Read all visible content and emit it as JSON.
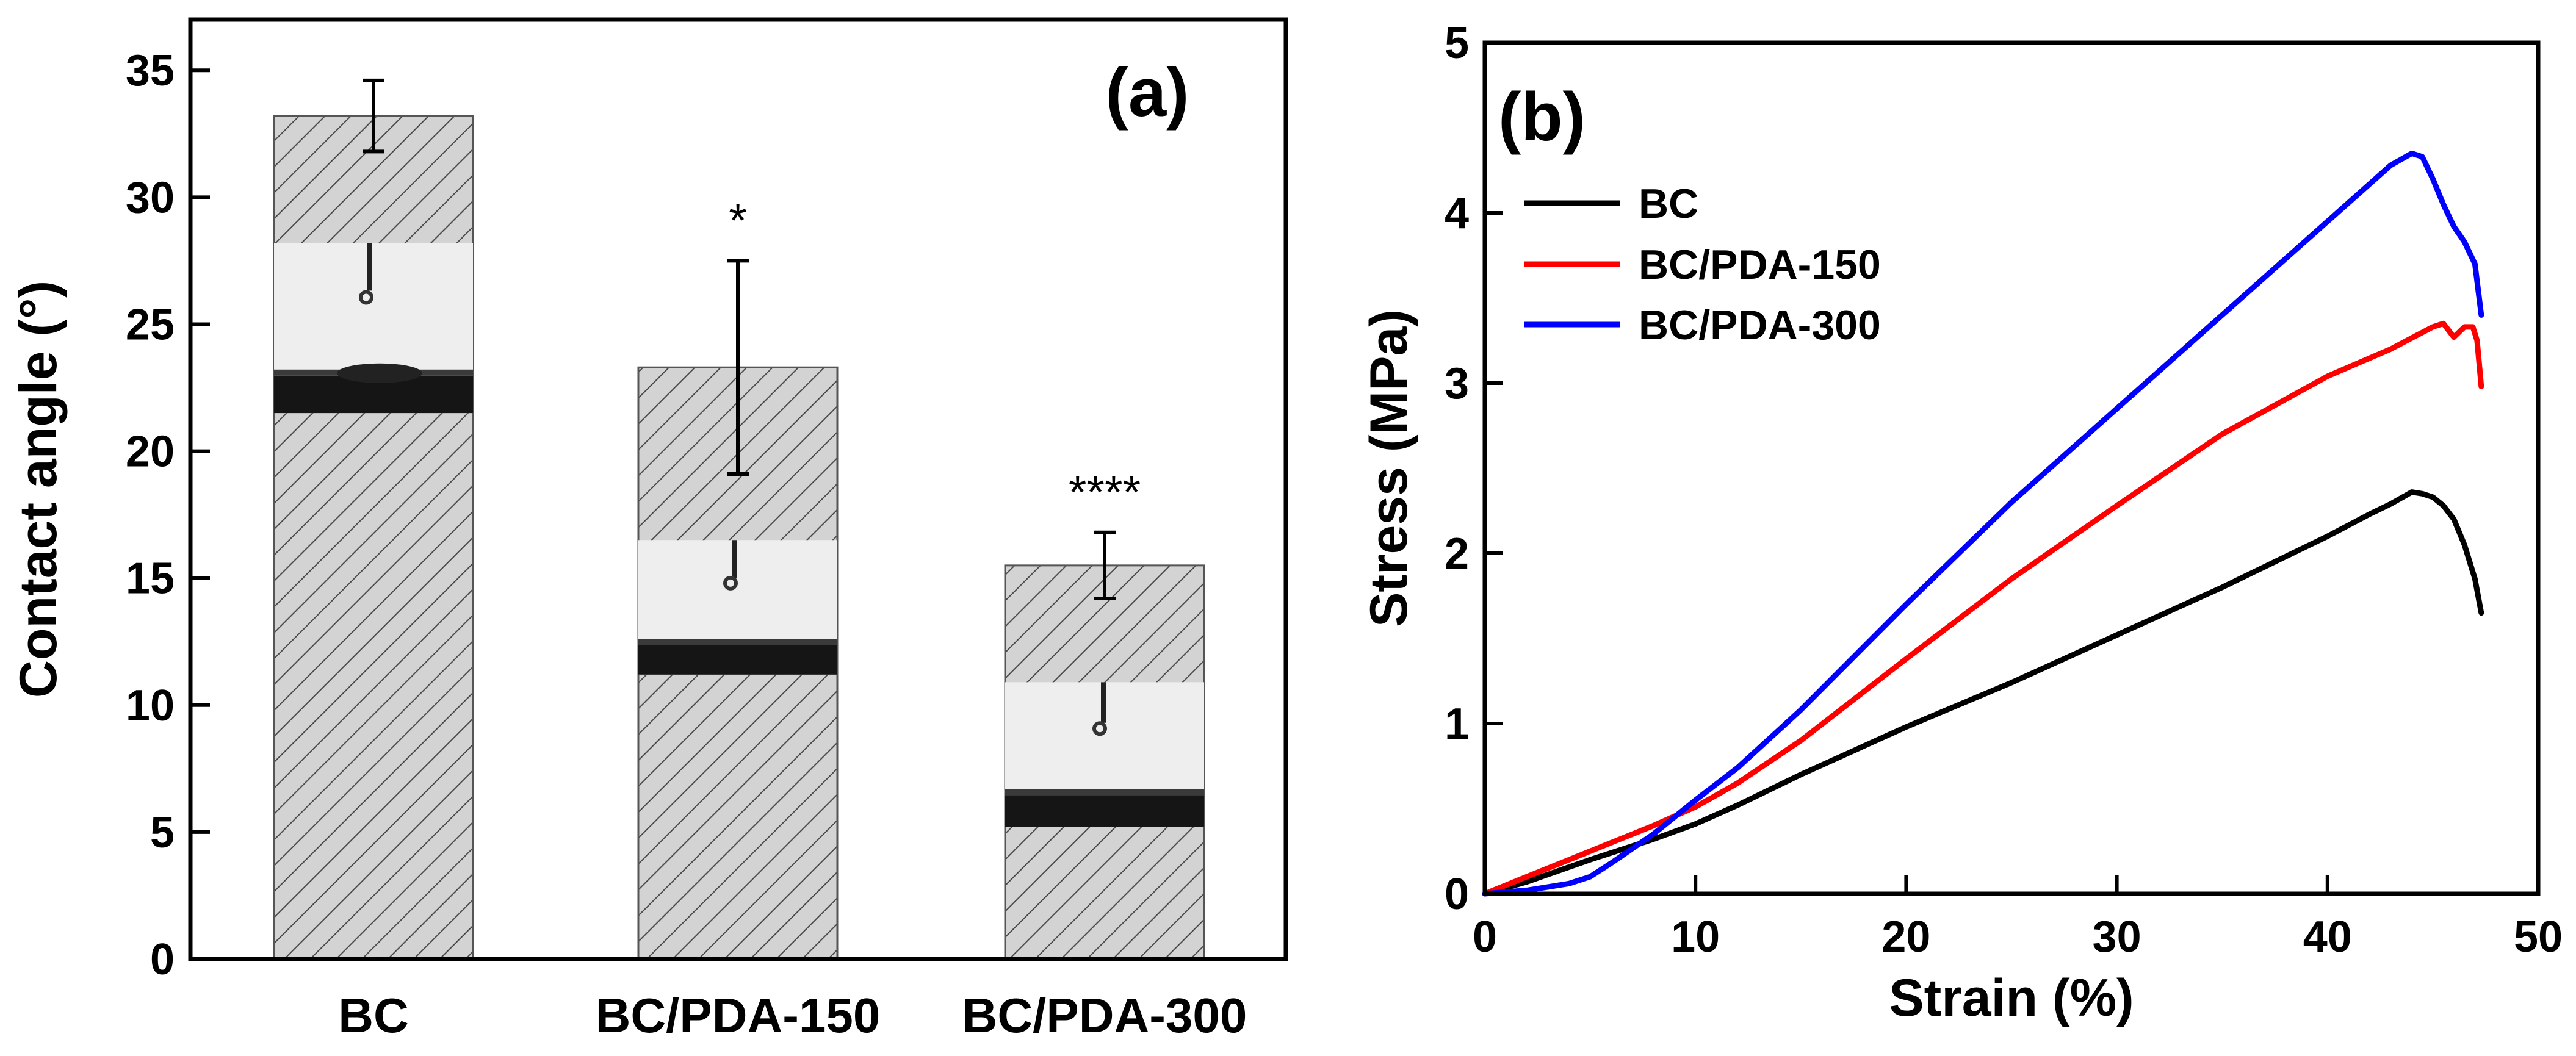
{
  "chart_data": [
    {
      "type": "bar",
      "panel_label": "(a)",
      "title": "",
      "xlabel": "",
      "ylabel": "Contact angle (°)",
      "ylim": [
        0,
        37
      ],
      "yticks": [
        0,
        5,
        10,
        15,
        20,
        25,
        30,
        35
      ],
      "categories": [
        "BC",
        "BC/PDA-150",
        "BC/PDA-300"
      ],
      "values": [
        33.2,
        23.3,
        15.5
      ],
      "errors": [
        1.4,
        4.2,
        1.3
      ],
      "significance": [
        "",
        "*",
        "****"
      ],
      "inset_images": [
        {
          "category": "BC",
          "depicts": "water droplet on BC film",
          "y_range": [
            21.5,
            28.2
          ]
        },
        {
          "category": "BC/PDA-150",
          "depicts": "water droplet on BC/PDA-150 film",
          "y_range": [
            11.2,
            16.5
          ]
        },
        {
          "category": "BC/PDA-300",
          "depicts": "water droplet on BC/PDA-300 film",
          "y_range": [
            5.2,
            10.9
          ]
        }
      ]
    },
    {
      "type": "line",
      "panel_label": "(b)",
      "title": "",
      "xlabel": "Strain (%)",
      "ylabel": "Stress (MPa)",
      "xlim": [
        0,
        50
      ],
      "ylim": [
        0,
        5
      ],
      "xticks": [
        0,
        10,
        20,
        30,
        40,
        50
      ],
      "yticks": [
        0,
        1,
        2,
        3,
        4,
        5
      ],
      "legend_position": "top-left",
      "series": [
        {
          "name": "BC",
          "color": "#000000",
          "x": [
            0,
            2,
            5,
            8,
            10,
            12,
            15,
            20,
            25,
            30,
            35,
            40,
            42,
            43,
            44,
            44.5,
            45,
            45.5,
            46,
            46.5,
            47,
            47.3
          ],
          "y": [
            0,
            0.07,
            0.2,
            0.32,
            0.41,
            0.52,
            0.7,
            0.98,
            1.24,
            1.52,
            1.8,
            2.1,
            2.23,
            2.29,
            2.36,
            2.35,
            2.33,
            2.28,
            2.2,
            2.05,
            1.85,
            1.65
          ]
        },
        {
          "name": "BC/PDA-150",
          "color": "#ff0000",
          "x": [
            0,
            2,
            5,
            8,
            10,
            12,
            15,
            20,
            25,
            30,
            35,
            40,
            43,
            45,
            45.5,
            46,
            46.5,
            46.9,
            47.1,
            47.3
          ],
          "y": [
            0,
            0.1,
            0.25,
            0.4,
            0.51,
            0.65,
            0.9,
            1.38,
            1.85,
            2.28,
            2.7,
            3.04,
            3.2,
            3.33,
            3.35,
            3.27,
            3.33,
            3.33,
            3.25,
            2.98
          ]
        },
        {
          "name": "BC/PDA-300",
          "color": "#0000ff",
          "x": [
            0,
            2,
            4,
            5,
            6,
            8,
            10,
            12,
            15,
            20,
            25,
            30,
            35,
            40,
            43,
            44,
            44.5,
            45,
            45.5,
            46,
            46.5,
            47,
            47.3
          ],
          "y": [
            0,
            0.02,
            0.06,
            0.1,
            0.18,
            0.35,
            0.55,
            0.74,
            1.08,
            1.7,
            2.3,
            2.85,
            3.4,
            3.95,
            4.28,
            4.35,
            4.33,
            4.2,
            4.05,
            3.92,
            3.83,
            3.7,
            3.4
          ]
        }
      ]
    }
  ]
}
